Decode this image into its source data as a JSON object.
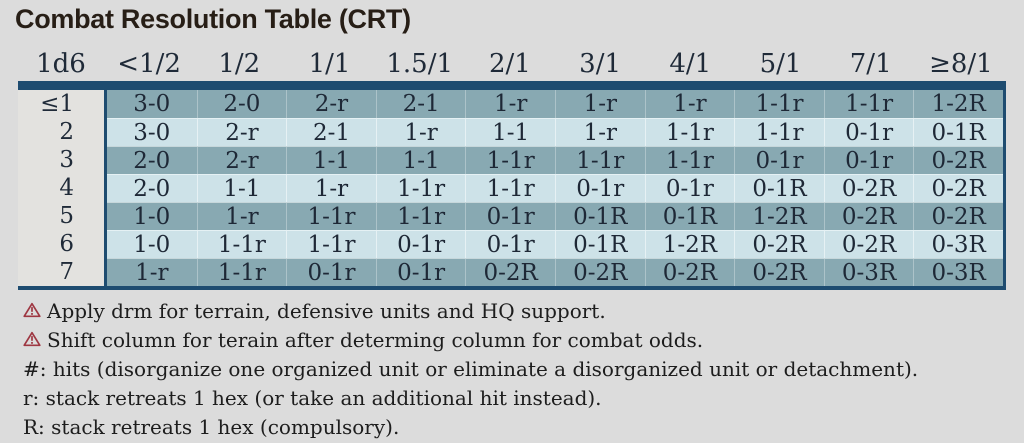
{
  "title": "Combat Resolution Table (CRT)",
  "colors": {
    "page_bg": "#dcdcdc",
    "navy": "#1e4c70",
    "row_dark": "#88a9b2",
    "row_light": "#cde2e8",
    "d6_column_bg": "#e3e2df",
    "warning_red": "#9e3742"
  },
  "chart_data": {
    "type": "table",
    "title": "Combat Resolution Table (CRT)",
    "columns": [
      "1d6",
      "<1/2",
      "1/2",
      "1/1",
      "1.5/1",
      "2/1",
      "3/1",
      "4/1",
      "5/1",
      "7/1",
      "≥8/1"
    ],
    "rows": [
      {
        "d6": "≤1",
        "cells": [
          "3-0",
          "2-0",
          "2-r",
          "2-1",
          "1-r",
          "1-r",
          "1-r",
          "1-1r",
          "1-1r",
          "1-2R"
        ]
      },
      {
        "d6": "2",
        "cells": [
          "3-0",
          "2-r",
          "2-1",
          "1-r",
          "1-1",
          "1-r",
          "1-1r",
          "1-1r",
          "0-1r",
          "0-1R"
        ]
      },
      {
        "d6": "3",
        "cells": [
          "2-0",
          "2-r",
          "1-1",
          "1-1",
          "1-1r",
          "1-1r",
          "1-1r",
          "0-1r",
          "0-1r",
          "0-2R"
        ]
      },
      {
        "d6": "4",
        "cells": [
          "2-0",
          "1-1",
          "1-r",
          "1-1r",
          "1-1r",
          "0-1r",
          "0-1r",
          "0-1R",
          "0-2R",
          "0-2R"
        ]
      },
      {
        "d6": "5",
        "cells": [
          "1-0",
          "1-r",
          "1-1r",
          "1-1r",
          "0-1r",
          "0-1R",
          "0-1R",
          "1-2R",
          "0-2R",
          "0-2R"
        ]
      },
      {
        "d6": "6",
        "cells": [
          "1-0",
          "1-1r",
          "1-1r",
          "0-1r",
          "0-1r",
          "0-1R",
          "1-2R",
          "0-2R",
          "0-2R",
          "0-3R"
        ]
      },
      {
        "d6": "7",
        "cells": [
          "1-r",
          "1-1r",
          "0-1r",
          "0-1r",
          "0-2R",
          "0-2R",
          "0-2R",
          "0-2R",
          "0-3R",
          "0-3R"
        ]
      }
    ]
  },
  "footnotes": [
    {
      "icon": "warning",
      "text": "Apply drm for terrain, defensive units and HQ support."
    },
    {
      "icon": "warning",
      "text": "Shift column for terain after determing column for combat odds."
    },
    {
      "icon": "",
      "text": "#: hits (disorganize one organized unit or eliminate a disorganized unit or detachment)."
    },
    {
      "icon": "",
      "text": "r: stack retreats 1 hex (or take an additional hit instead)."
    },
    {
      "icon": "",
      "text": "R: stack retreats 1 hex (compulsory)."
    }
  ]
}
